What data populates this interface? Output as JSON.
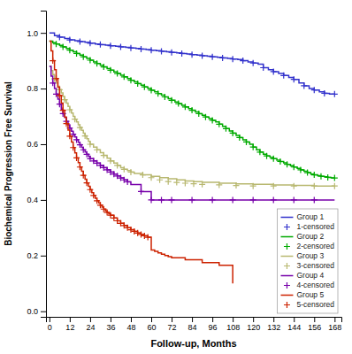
{
  "chart_data": {
    "type": "step",
    "x_label": "Follow-up, Months",
    "y_label": "Biochemical Progression Free Survival",
    "xlim": [
      -2,
      172
    ],
    "ylim": [
      -0.02,
      1.08
    ],
    "xticks": [
      0,
      12,
      24,
      36,
      48,
      60,
      72,
      84,
      96,
      108,
      120,
      132,
      144,
      156,
      168
    ],
    "yticks": [
      {
        "value": 0,
        "label": "0.0"
      },
      0.2,
      0.4,
      0.6,
      0.8,
      {
        "value": 1,
        "label": "1.0"
      }
    ],
    "grid": false,
    "legend": "lower right",
    "series": [
      {
        "name": "Group 1",
        "color": "#3333cc",
        "x": [
          0,
          3,
          6,
          9,
          12,
          15,
          18,
          21,
          24,
          27,
          30,
          33,
          36,
          39,
          42,
          45,
          48,
          51,
          54,
          57,
          60,
          63,
          66,
          69,
          72,
          75,
          78,
          81,
          84,
          87,
          90,
          93,
          96,
          99,
          102,
          105,
          108,
          111,
          114,
          117,
          120,
          123,
          126,
          129,
          132,
          135,
          138,
          141,
          144,
          147,
          150,
          153,
          156,
          159,
          162,
          165,
          168
        ],
        "values": [
          1.0,
          0.99,
          0.985,
          0.98,
          0.975,
          0.972,
          0.969,
          0.966,
          0.963,
          0.96,
          0.958,
          0.956,
          0.954,
          0.952,
          0.95,
          0.948,
          0.946,
          0.944,
          0.942,
          0.94,
          0.938,
          0.936,
          0.934,
          0.932,
          0.93,
          0.928,
          0.926,
          0.924,
          0.922,
          0.92,
          0.918,
          0.916,
          0.914,
          0.912,
          0.91,
          0.908,
          0.906,
          0.904,
          0.9,
          0.896,
          0.892,
          0.888,
          0.875,
          0.868,
          0.861,
          0.854,
          0.847,
          0.84,
          0.833,
          0.82,
          0.81,
          0.8,
          0.795,
          0.788,
          0.783,
          0.78,
          0.78
        ]
      },
      {
        "name": "1-censored",
        "color": "#3333cc",
        "type": "scatter",
        "marker": "plus",
        "x": [
          6,
          12,
          18,
          24,
          30,
          36,
          42,
          48,
          54,
          60,
          66,
          72,
          78,
          84,
          90,
          96,
          102,
          108,
          114,
          120,
          126,
          132,
          138,
          144,
          150,
          156,
          162,
          168
        ],
        "values": [
          0.985,
          0.975,
          0.969,
          0.963,
          0.958,
          0.954,
          0.95,
          0.946,
          0.942,
          0.938,
          0.934,
          0.93,
          0.926,
          0.922,
          0.918,
          0.914,
          0.91,
          0.906,
          0.9,
          0.892,
          0.875,
          0.861,
          0.847,
          0.833,
          0.81,
          0.795,
          0.783,
          0.78
        ]
      },
      {
        "name": "Group 2",
        "color": "#00aa00",
        "x": [
          0,
          2,
          4,
          6,
          8,
          10,
          12,
          14,
          16,
          18,
          20,
          22,
          24,
          26,
          28,
          30,
          32,
          34,
          36,
          38,
          40,
          42,
          44,
          46,
          48,
          50,
          52,
          54,
          56,
          58,
          60,
          62,
          64,
          66,
          68,
          70,
          72,
          74,
          76,
          78,
          80,
          82,
          84,
          86,
          88,
          90,
          92,
          94,
          96,
          98,
          100,
          102,
          104,
          106,
          108,
          110,
          112,
          114,
          116,
          118,
          120,
          122,
          124,
          126,
          128,
          130,
          132,
          134,
          136,
          138,
          140,
          142,
          144,
          146,
          148,
          150,
          152,
          154,
          156,
          158,
          160,
          162,
          164,
          166,
          168
        ],
        "values": [
          0.97,
          0.965,
          0.96,
          0.955,
          0.95,
          0.944,
          0.938,
          0.932,
          0.926,
          0.92,
          0.914,
          0.908,
          0.902,
          0.896,
          0.89,
          0.884,
          0.878,
          0.872,
          0.866,
          0.86,
          0.854,
          0.848,
          0.842,
          0.836,
          0.83,
          0.824,
          0.818,
          0.812,
          0.806,
          0.8,
          0.794,
          0.788,
          0.782,
          0.776,
          0.77,
          0.764,
          0.758,
          0.752,
          0.746,
          0.74,
          0.734,
          0.728,
          0.722,
          0.716,
          0.71,
          0.704,
          0.698,
          0.692,
          0.686,
          0.68,
          0.672,
          0.664,
          0.656,
          0.648,
          0.64,
          0.632,
          0.624,
          0.616,
          0.608,
          0.6,
          0.59,
          0.58,
          0.572,
          0.564,
          0.558,
          0.553,
          0.548,
          0.543,
          0.538,
          0.533,
          0.528,
          0.523,
          0.518,
          0.513,
          0.508,
          0.503,
          0.498,
          0.493,
          0.49,
          0.487,
          0.485,
          0.483,
          0.481,
          0.479,
          0.479
        ]
      },
      {
        "name": "2-censored",
        "color": "#00aa00",
        "type": "scatter",
        "marker": "plus",
        "x": [
          4,
          8,
          12,
          16,
          20,
          24,
          28,
          32,
          36,
          40,
          44,
          48,
          52,
          56,
          60,
          64,
          68,
          72,
          76,
          80,
          84,
          88,
          92,
          96,
          100,
          104,
          108,
          112,
          116,
          120,
          124,
          128,
          132,
          136,
          140,
          144,
          148,
          152,
          156,
          160,
          164,
          168
        ],
        "values": [
          0.96,
          0.95,
          0.938,
          0.926,
          0.914,
          0.902,
          0.89,
          0.878,
          0.866,
          0.854,
          0.842,
          0.83,
          0.818,
          0.806,
          0.794,
          0.782,
          0.77,
          0.758,
          0.746,
          0.734,
          0.722,
          0.71,
          0.698,
          0.686,
          0.672,
          0.656,
          0.64,
          0.624,
          0.608,
          0.59,
          0.572,
          0.558,
          0.548,
          0.538,
          0.528,
          0.518,
          0.508,
          0.498,
          0.49,
          0.485,
          0.481,
          0.479
        ]
      },
      {
        "name": "Group 3",
        "color": "#b8b870",
        "x": [
          0,
          1,
          2,
          3,
          4,
          5,
          6,
          7,
          8,
          9,
          10,
          11,
          12,
          13,
          14,
          15,
          16,
          17,
          18,
          19,
          20,
          21,
          22,
          23,
          24,
          26,
          28,
          30,
          32,
          34,
          36,
          38,
          40,
          42,
          44,
          46,
          48,
          50,
          55,
          60,
          65,
          70,
          75,
          80,
          85,
          90,
          100,
          110,
          120,
          132,
          144,
          156,
          168
        ],
        "values": [
          0.88,
          0.865,
          0.85,
          0.835,
          0.82,
          0.808,
          0.796,
          0.784,
          0.772,
          0.76,
          0.748,
          0.736,
          0.724,
          0.712,
          0.7,
          0.69,
          0.68,
          0.67,
          0.66,
          0.65,
          0.64,
          0.63,
          0.62,
          0.61,
          0.6,
          0.59,
          0.58,
          0.57,
          0.56,
          0.55,
          0.54,
          0.532,
          0.524,
          0.516,
          0.51,
          0.505,
          0.5,
          0.495,
          0.49,
          0.485,
          0.48,
          0.476,
          0.472,
          0.468,
          0.466,
          0.463,
          0.46,
          0.458,
          0.456,
          0.454,
          0.452,
          0.45,
          0.45
        ]
      },
      {
        "name": "3-censored",
        "color": "#b8b870",
        "type": "scatter",
        "marker": "plus",
        "x": [
          3,
          6,
          9,
          12,
          15,
          18,
          21,
          24,
          28,
          32,
          36,
          40,
          44,
          48,
          55,
          60,
          65,
          70,
          75,
          80,
          85,
          90,
          100,
          110,
          120,
          132,
          144,
          156,
          168
        ],
        "values": [
          0.835,
          0.796,
          0.76,
          0.724,
          0.69,
          0.66,
          0.63,
          0.6,
          0.58,
          0.56,
          0.54,
          0.524,
          0.51,
          0.5,
          0.49,
          0.48,
          0.472,
          0.466,
          0.463,
          0.46,
          0.458,
          0.456,
          0.454,
          0.452,
          0.45,
          0.45,
          0.45,
          0.45,
          0.45
        ]
      },
      {
        "name": "Group 4",
        "color": "#7700aa",
        "x": [
          0,
          1,
          2,
          3,
          4,
          5,
          6,
          7,
          8,
          9,
          10,
          11,
          12,
          13,
          14,
          15,
          16,
          17,
          18,
          19,
          20,
          21,
          22,
          23,
          24,
          26,
          28,
          30,
          32,
          34,
          36,
          38,
          40,
          42,
          44,
          46,
          48,
          54,
          60,
          66,
          72,
          84,
          96,
          108,
          120,
          132,
          144,
          156,
          168
        ],
        "values": [
          0.88,
          0.845,
          0.82,
          0.8,
          0.78,
          0.762,
          0.744,
          0.726,
          0.71,
          0.696,
          0.682,
          0.67,
          0.658,
          0.647,
          0.636,
          0.626,
          0.616,
          0.607,
          0.598,
          0.589,
          0.58,
          0.572,
          0.564,
          0.556,
          0.548,
          0.54,
          0.532,
          0.524,
          0.516,
          0.508,
          0.5,
          0.493,
          0.486,
          0.479,
          0.472,
          0.465,
          0.455,
          0.43,
          0.4,
          0.4,
          0.4,
          0.4,
          0.4,
          0.4,
          0.4,
          0.4,
          0.4,
          0.4,
          0.4
        ]
      },
      {
        "name": "4-censored",
        "color": "#7700aa",
        "type": "scatter",
        "marker": "plus",
        "x": [
          2,
          4,
          6,
          8,
          10,
          12,
          14,
          16,
          18,
          20,
          22,
          24,
          26,
          28,
          30,
          32,
          34,
          36,
          38,
          40,
          42,
          44,
          46,
          54,
          60,
          66,
          72,
          84,
          96,
          108,
          120,
          132,
          144,
          156
        ],
        "values": [
          0.82,
          0.78,
          0.744,
          0.71,
          0.682,
          0.658,
          0.636,
          0.616,
          0.598,
          0.58,
          0.564,
          0.548,
          0.54,
          0.532,
          0.524,
          0.516,
          0.508,
          0.5,
          0.493,
          0.486,
          0.479,
          0.472,
          0.465,
          0.43,
          0.4,
          0.4,
          0.4,
          0.4,
          0.4,
          0.4,
          0.4,
          0.4,
          0.4,
          0.4
        ]
      },
      {
        "name": "Group 5",
        "color": "#cc2200",
        "x": [
          0,
          1,
          2,
          3,
          4,
          5,
          6,
          7,
          8,
          9,
          10,
          11,
          12,
          13,
          14,
          15,
          16,
          17,
          18,
          19,
          20,
          21,
          22,
          23,
          24,
          25,
          26,
          27,
          28,
          29,
          30,
          31,
          32,
          33,
          34,
          35,
          36,
          38,
          40,
          42,
          44,
          46,
          48,
          50,
          52,
          54,
          56,
          58,
          60,
          62,
          64,
          66,
          68,
          70,
          72,
          80,
          90,
          100,
          108
        ],
        "values": [
          0.97,
          0.935,
          0.9,
          0.868,
          0.836,
          0.805,
          0.775,
          0.748,
          0.722,
          0.698,
          0.674,
          0.651,
          0.629,
          0.608,
          0.588,
          0.569,
          0.551,
          0.534,
          0.518,
          0.503,
          0.488,
          0.474,
          0.461,
          0.449,
          0.437,
          0.426,
          0.416,
          0.406,
          0.397,
          0.389,
          0.381,
          0.374,
          0.367,
          0.361,
          0.355,
          0.35,
          0.345,
          0.335,
          0.325,
          0.316,
          0.308,
          0.3,
          0.293,
          0.287,
          0.281,
          0.276,
          0.271,
          0.266,
          0.22,
          0.215,
          0.21,
          0.205,
          0.2,
          0.196,
          0.192,
          0.185,
          0.175,
          0.165,
          0.1
        ]
      },
      {
        "name": "5-censored",
        "color": "#cc2200",
        "type": "scatter",
        "marker": "plus",
        "x": [
          2,
          4,
          6,
          8,
          10,
          12,
          14,
          16,
          18,
          20,
          22,
          24,
          26,
          28,
          30,
          32,
          34,
          36,
          38,
          40,
          42,
          44,
          46,
          48,
          50,
          52,
          54,
          56,
          58
        ],
        "values": [
          0.9,
          0.836,
          0.775,
          0.722,
          0.674,
          0.629,
          0.588,
          0.551,
          0.518,
          0.488,
          0.461,
          0.437,
          0.416,
          0.397,
          0.381,
          0.367,
          0.355,
          0.345,
          0.335,
          0.325,
          0.316,
          0.308,
          0.3,
          0.293,
          0.287,
          0.281,
          0.276,
          0.271,
          0.266
        ]
      }
    ]
  }
}
